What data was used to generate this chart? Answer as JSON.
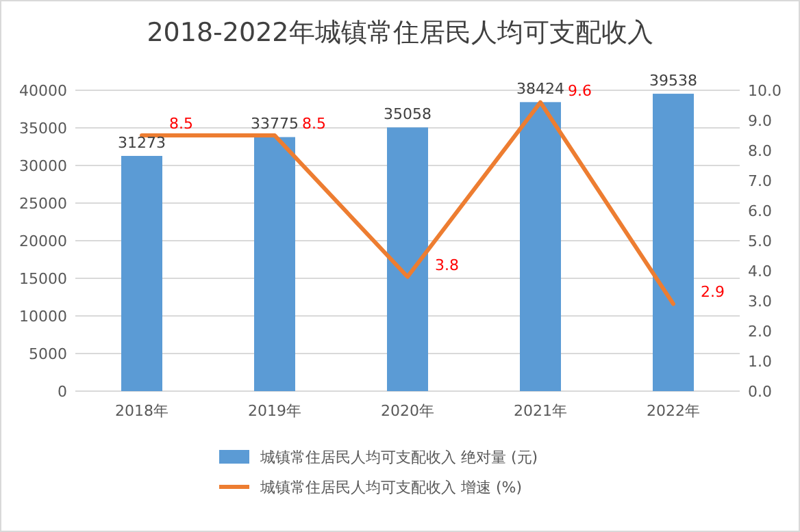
{
  "chart_data": {
    "type": "bar",
    "title": "2018-2022年城镇常住居民人均可支配收入",
    "categories": [
      "2018年",
      "2019年",
      "2020年",
      "2021年",
      "2022年"
    ],
    "series": [
      {
        "name": "城镇常住居民人均可支配收入 绝对量 (元)",
        "color": "#5b9bd5",
        "values": [
          31273,
          33775,
          35058,
          38424,
          39538
        ]
      },
      {
        "name": "城镇常住居民人均可支配收入 增速 (%)",
        "type": "line",
        "axis": "y2",
        "color": "#ed7d31",
        "values": [
          8.5,
          8.5,
          3.8,
          9.6,
          2.9
        ]
      }
    ],
    "ylim": [
      0,
      40000
    ],
    "yticks": [
      0,
      5000,
      10000,
      15000,
      20000,
      25000,
      30000,
      35000,
      40000
    ],
    "y2lim": [
      0,
      10
    ],
    "y2ticks": [
      {
        "value": 0,
        "label": "0.0"
      },
      {
        "value": 1,
        "label": "1.0"
      },
      {
        "value": 2,
        "label": "2.0"
      },
      {
        "value": 3,
        "label": "3.0"
      },
      {
        "value": 4,
        "label": "4.0"
      },
      {
        "value": 5,
        "label": "5.0"
      },
      {
        "value": 6,
        "label": "6.0"
      },
      {
        "value": 7,
        "label": "7.0"
      },
      {
        "value": 8,
        "label": "8.0"
      },
      {
        "value": 9,
        "label": "9.0"
      },
      {
        "value": 10,
        "label": "10.0"
      }
    ],
    "grid": "y",
    "legend": "bottom",
    "data_labels": true,
    "marker": "none"
  }
}
